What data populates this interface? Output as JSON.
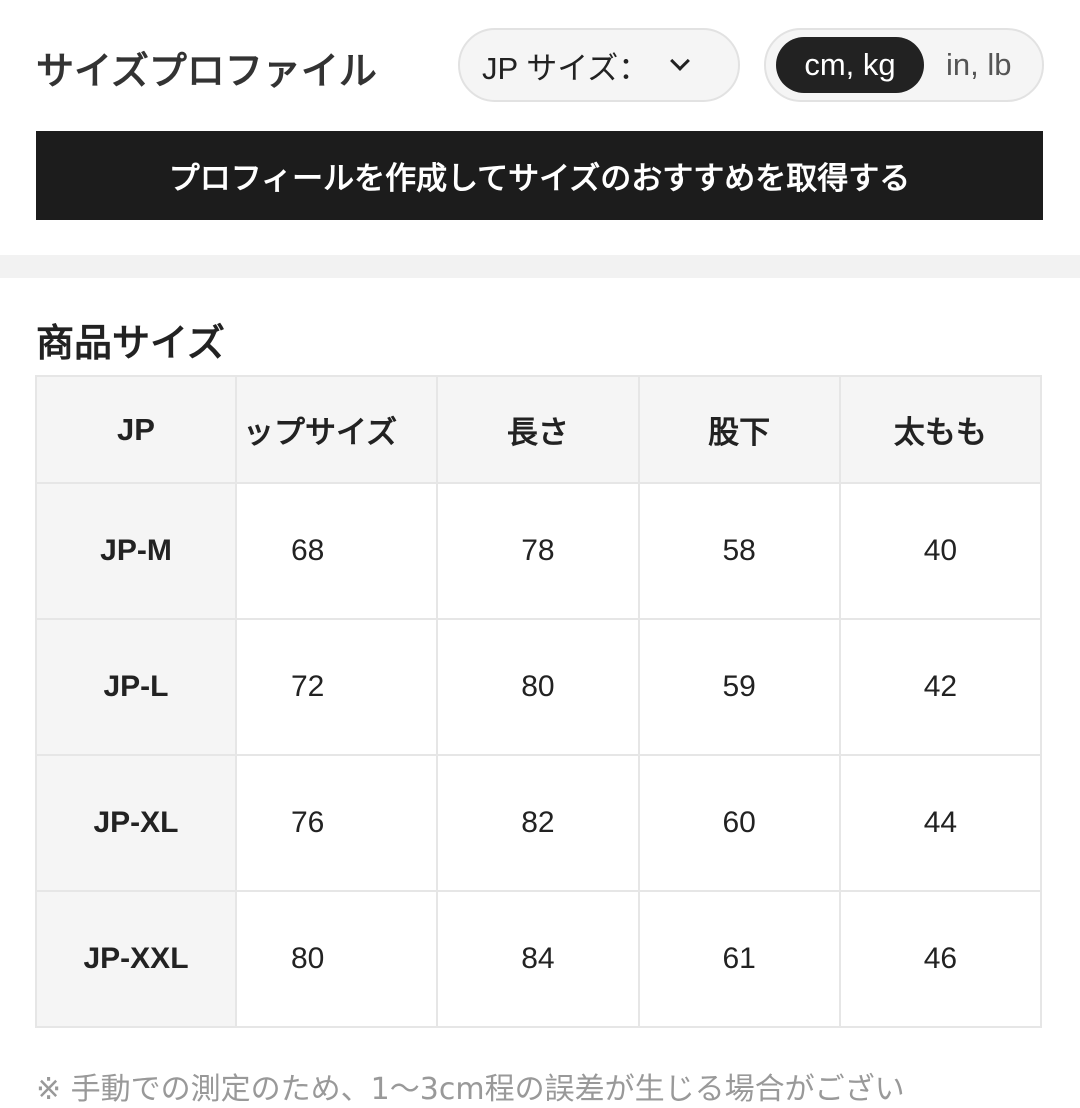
{
  "header": {
    "title": "サイズプロファイル",
    "size_select": "JP サイズ：",
    "units": [
      "cm, kg",
      "in, lb"
    ],
    "active_unit": "cm, kg"
  },
  "cta": "プロフィールを作成してサイズのおすすめを取得する",
  "section_title": "商品サイズ",
  "table": {
    "headers": [
      "JP",
      "ップサイズ",
      "長さ",
      "股下",
      "太もも"
    ],
    "rows": [
      [
        "JP-M",
        "68",
        "78",
        "58",
        "40"
      ],
      [
        "JP-L",
        "72",
        "80",
        "59",
        "42"
      ],
      [
        "JP-XL",
        "76",
        "82",
        "60",
        "44"
      ],
      [
        "JP-XXL",
        "80",
        "84",
        "61",
        "46"
      ]
    ]
  },
  "note": "※ 手動での測定のため、1～3cm程の誤差が生じる場合がござい"
}
